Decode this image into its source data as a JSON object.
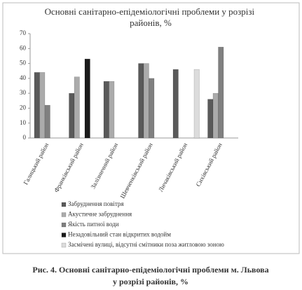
{
  "chart_data": {
    "type": "bar",
    "title": "Основні санітарно-епідеміологічні  проблеми у розрізі районів, %",
    "categories": [
      "Галицький район",
      "Франківський район",
      "Залізничний район",
      "Шевченківський район",
      "Личаківський район",
      "Сихівський район"
    ],
    "series": [
      {
        "name": "Забруднення повітря",
        "color": "#5a5a5a",
        "values": [
          44,
          30,
          38,
          50,
          46,
          26
        ]
      },
      {
        "name": "Акустичне забруднення",
        "color": "#ababab",
        "values": [
          44,
          41,
          38,
          50,
          null,
          30
        ]
      },
      {
        "name": "Якість питної води",
        "color": "#808080",
        "values": [
          22,
          null,
          null,
          40,
          null,
          61
        ]
      },
      {
        "name": "Незадовільний стан відкритих водойм",
        "color": "#1a1a1a",
        "values": [
          null,
          53,
          null,
          null,
          null,
          null
        ]
      },
      {
        "name": "Засмічені вулиці, відсутні смітники поза житловою зоною",
        "color": "#dcdcdc",
        "values": [
          null,
          null,
          null,
          null,
          46,
          null
        ]
      }
    ],
    "ylim": [
      0,
      70
    ],
    "yticks": [
      0,
      10,
      20,
      30,
      40,
      50,
      60,
      70
    ],
    "grid": false
  },
  "caption": [
    "Рис. 4. Основні санітарно-епідеміологічні проблеми м. Львова",
    "у розрізі районів, %"
  ]
}
